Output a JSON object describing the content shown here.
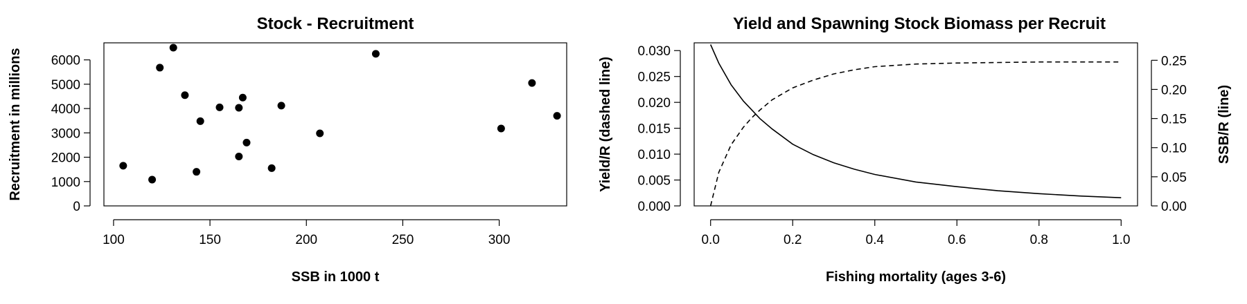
{
  "chart_data": [
    {
      "type": "scatter",
      "title": "Stock - Recruitment",
      "xlabel": "SSB in 1000 t",
      "ylabel": "Recruitment in millions",
      "xlim": [
        95,
        335
      ],
      "ylim": [
        0,
        6700
      ],
      "xticks": [
        100,
        150,
        200,
        250,
        300
      ],
      "yticks": [
        0,
        1000,
        2000,
        3000,
        4000,
        5000,
        6000
      ],
      "points": [
        {
          "x": 105,
          "y": 1650
        },
        {
          "x": 120,
          "y": 1080
        },
        {
          "x": 124,
          "y": 5680
        },
        {
          "x": 131,
          "y": 6500
        },
        {
          "x": 137,
          "y": 4550
        },
        {
          "x": 143,
          "y": 1400
        },
        {
          "x": 145,
          "y": 3480
        },
        {
          "x": 155,
          "y": 4050
        },
        {
          "x": 165,
          "y": 4030
        },
        {
          "x": 165,
          "y": 2030
        },
        {
          "x": 167,
          "y": 4450
        },
        {
          "x": 169,
          "y": 2600
        },
        {
          "x": 182,
          "y": 1550
        },
        {
          "x": 187,
          "y": 4120
        },
        {
          "x": 207,
          "y": 2980
        },
        {
          "x": 236,
          "y": 6250
        },
        {
          "x": 301,
          "y": 3180
        },
        {
          "x": 317,
          "y": 5050
        },
        {
          "x": 330,
          "y": 3700
        }
      ]
    },
    {
      "type": "line",
      "title": "Yield and Spawning Stock Biomass per Recruit",
      "xlabel": "Fishing mortality (ages 3-6)",
      "ylabel": "Yield/R (dashed line)",
      "ylabel_right": "SSB/R (line)",
      "xlim": [
        -0.04,
        1.04
      ],
      "ylim": [
        0,
        0.0315
      ],
      "ylim_right": [
        0,
        0.28
      ],
      "xticks": [
        0.0,
        0.2,
        0.4,
        0.6,
        0.8,
        1.0
      ],
      "xtick_labels": [
        "0.0",
        "0.2",
        "0.4",
        "0.6",
        "0.8",
        "1.0"
      ],
      "yticks": [
        0,
        0.005,
        0.01,
        0.015,
        0.02,
        0.025,
        0.03
      ],
      "ytick_labels": [
        "0.000",
        "0.005",
        "0.010",
        "0.015",
        "0.020",
        "0.025",
        "0.030"
      ],
      "yticks_right": [
        0,
        0.05,
        0.1,
        0.15,
        0.2,
        0.25
      ],
      "ytick_labels_right": [
        "0.00",
        "0.05",
        "0.10",
        "0.15",
        "0.20",
        "0.25"
      ],
      "series": [
        {
          "name": "Yield/R",
          "axis": "left",
          "style": "dashed",
          "x": [
            0.0,
            0.02,
            0.05,
            0.08,
            0.1,
            0.12,
            0.15,
            0.2,
            0.25,
            0.3,
            0.35,
            0.4,
            0.5,
            0.6,
            0.7,
            0.8,
            0.9,
            1.0
          ],
          "y": [
            0.0,
            0.0065,
            0.0118,
            0.0152,
            0.017,
            0.0185,
            0.0205,
            0.0228,
            0.0243,
            0.0255,
            0.0263,
            0.0269,
            0.0274,
            0.0276,
            0.0277,
            0.0278,
            0.0278,
            0.0278
          ]
        },
        {
          "name": "SSB/R",
          "axis": "right",
          "style": "solid",
          "x": [
            0.0,
            0.02,
            0.05,
            0.08,
            0.1,
            0.12,
            0.15,
            0.2,
            0.25,
            0.3,
            0.35,
            0.4,
            0.5,
            0.6,
            0.7,
            0.8,
            0.9,
            1.0
          ],
          "y": [
            0.277,
            0.245,
            0.208,
            0.18,
            0.165,
            0.15,
            0.132,
            0.106,
            0.088,
            0.074,
            0.063,
            0.054,
            0.041,
            0.033,
            0.026,
            0.021,
            0.017,
            0.014
          ]
        }
      ]
    }
  ]
}
